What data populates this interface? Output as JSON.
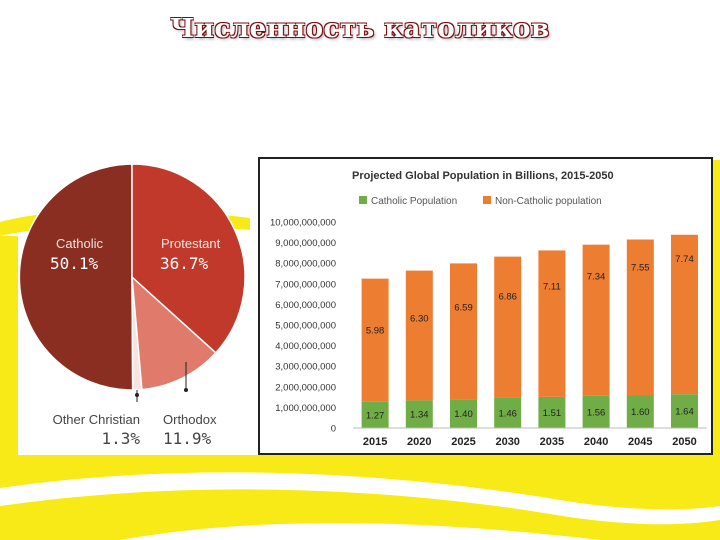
{
  "slide": {
    "title": "Численность католиков",
    "colors": {
      "yellow": "#f7ea16",
      "title_outline": "#7a0f0f"
    }
  },
  "chart_data": [
    {
      "type": "pie",
      "title": "",
      "slices": [
        {
          "label": "Catholic",
          "value": 50.1,
          "display": "50.1%",
          "color": "#8b2e22"
        },
        {
          "label": "Other Christian",
          "value": 1.3,
          "display": "1.3%",
          "color": "#f7e4df"
        },
        {
          "label": "Orthodox",
          "value": 11.9,
          "display": "11.9%",
          "color": "#e07b6c"
        },
        {
          "label": "Protestant",
          "value": 36.7,
          "display": "36.7%",
          "color": "#c0392b"
        }
      ]
    },
    {
      "type": "bar",
      "stacked": true,
      "title": "Projected Global Population in Billions, 2015-2050",
      "legend_position": "top-left",
      "categories": [
        "2015",
        "2020",
        "2025",
        "2030",
        "2035",
        "2040",
        "2045",
        "2050"
      ],
      "series": [
        {
          "name": "Catholic Population",
          "color": "#70ad47",
          "values": [
            1.27,
            1.34,
            1.4,
            1.46,
            1.51,
            1.56,
            1.6,
            1.64
          ],
          "labels": [
            "1.27",
            "1.34",
            "1.40",
            "1.46",
            "1.51",
            "1.56",
            "1.60",
            "1.64"
          ]
        },
        {
          "name": "Non-Catholic population",
          "color": "#ed7d31",
          "values": [
            5.98,
            6.3,
            6.59,
            6.86,
            7.11,
            7.34,
            7.55,
            7.74
          ],
          "labels": [
            "5.98",
            "6.30",
            "6.59",
            "6.86",
            "7.11",
            "7.34",
            "7.55",
            "7.74"
          ]
        }
      ],
      "ylim": [
        0,
        10000000000
      ],
      "y_ticks": [
        "0",
        "1,000,000,000",
        "2,000,000,000",
        "3,000,000,000",
        "4,000,000,000",
        "5,000,000,000",
        "6,000,000,000",
        "7,000,000,000",
        "8,000,000,000",
        "9,000,000,000",
        "10,000,000,000"
      ],
      "gridlines": false
    }
  ]
}
